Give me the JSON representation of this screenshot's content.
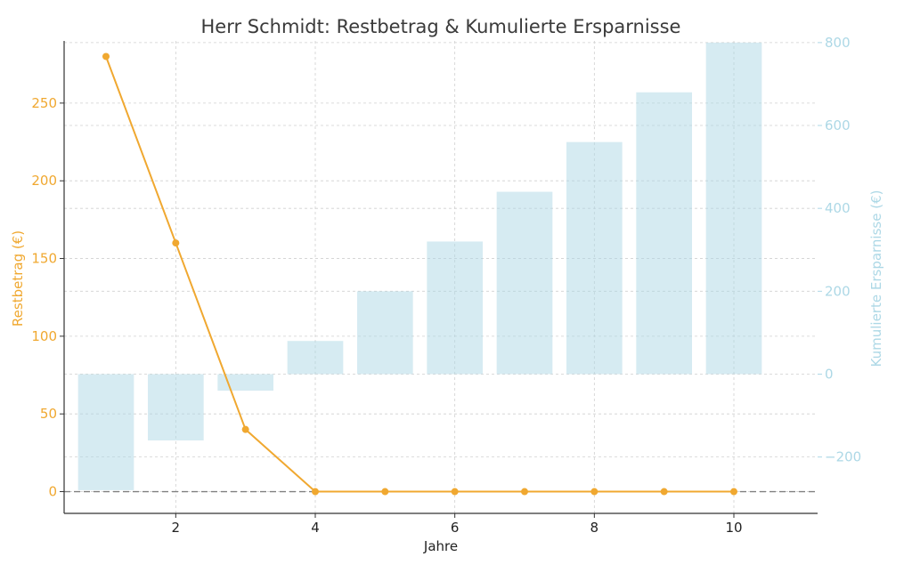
{
  "chart_data": {
    "type": "bar+line",
    "title": "Herr Schmidt: Restbetrag & Kumulierte Ersparnisse",
    "xlabel": "Jahre",
    "ylabel_left": "Restbetrag (€)",
    "ylabel_right": "Kumulierte Ersparnisse (€)",
    "x": [
      1,
      2,
      3,
      4,
      5,
      6,
      7,
      8,
      9,
      10
    ],
    "x_ticks": [
      2,
      4,
      6,
      8,
      10
    ],
    "xlim": [
      0.4,
      11.2
    ],
    "ylim_left": [
      -14,
      290
    ],
    "ylim_right": [
      -336,
      804
    ],
    "y_ticks_left": [
      0,
      50,
      100,
      150,
      200,
      250
    ],
    "y_ticks_right": [
      -200,
      0,
      200,
      400,
      600,
      800
    ],
    "y_tick_labels_right": [
      "−200",
      "0",
      "200",
      "400",
      "600",
      "800"
    ],
    "grid": true,
    "reference_line_left": 0,
    "series": [
      {
        "name": "Kumulierte Ersparnisse",
        "kind": "bar",
        "axis": "right",
        "color": "#add8e6",
        "values": [
          -280,
          -160,
          -40,
          80,
          200,
          320,
          440,
          560,
          680,
          800
        ]
      },
      {
        "name": "Restbetrag",
        "kind": "line",
        "axis": "left",
        "color": "#f0a830",
        "values": [
          280,
          160,
          40,
          0,
          0,
          0,
          0,
          0,
          0,
          0
        ]
      }
    ]
  }
}
